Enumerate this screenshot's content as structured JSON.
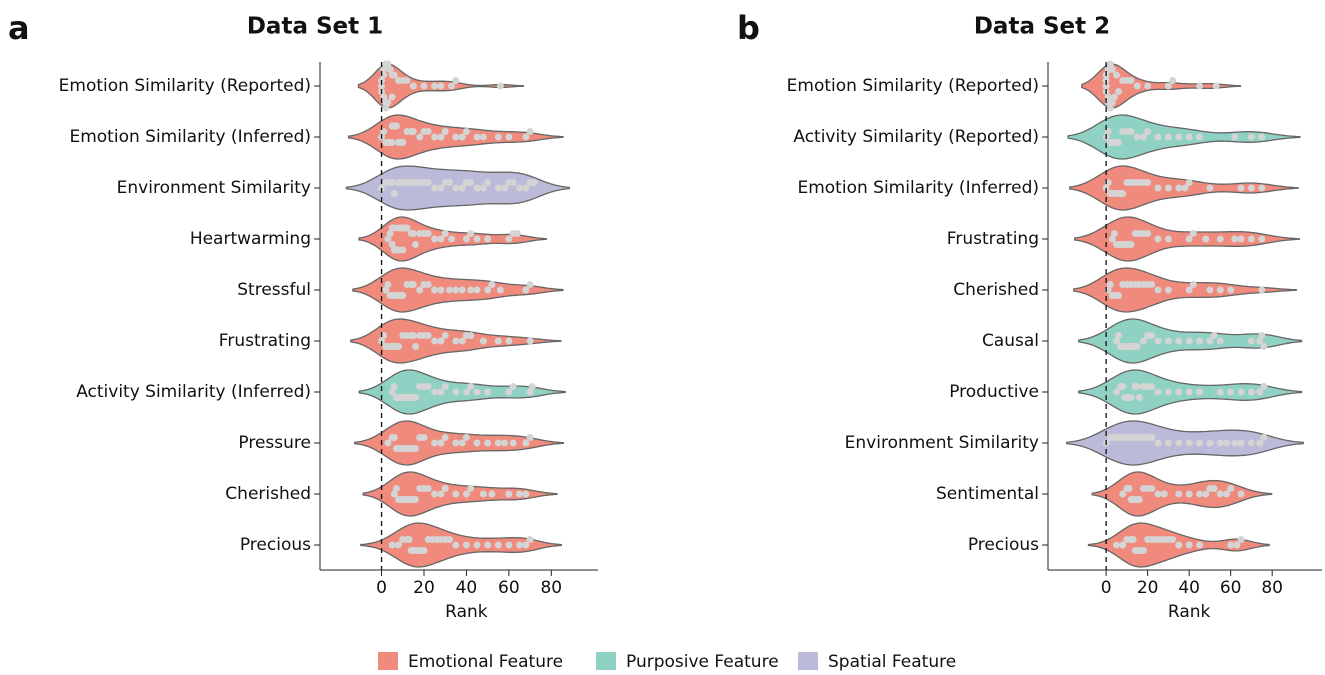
{
  "chart_data": [
    {
      "type": "violin",
      "panel_label": "a",
      "title": "Data Set 1",
      "xlabel": "Rank",
      "categories": [
        "Emotion Similarity (Reported)",
        "Emotion Similarity (Inferred)",
        "Environment Similarity",
        "Heartwarming",
        "Stressful",
        "Frustrating",
        "Activity Similarity (Inferred)",
        "Pressure",
        "Cherished",
        "Precious"
      ],
      "colors": [
        "#ef8a7c",
        "#ef8a7c",
        "#bcbad9",
        "#ef8a7c",
        "#ef8a7c",
        "#ef8a7c",
        "#8fd1c2",
        "#ef8a7c",
        "#ef8a7c",
        "#ef8a7c"
      ],
      "points": [
        [
          0,
          0,
          0,
          1,
          1,
          1,
          2,
          2,
          2,
          3,
          3,
          4,
          5,
          5,
          6,
          8,
          10,
          12,
          15,
          20,
          25,
          28,
          33,
          35,
          56
        ],
        [
          0,
          1,
          2,
          3,
          4,
          5,
          5,
          6,
          7,
          8,
          9,
          10,
          12,
          14,
          15,
          18,
          20,
          22,
          25,
          28,
          30,
          35,
          38,
          40,
          45,
          48,
          55,
          60,
          68,
          70
        ],
        [
          0,
          2,
          4,
          5,
          6,
          8,
          10,
          12,
          14,
          16,
          18,
          20,
          22,
          25,
          28,
          30,
          32,
          35,
          38,
          40,
          42,
          45,
          48,
          50,
          55,
          58,
          60,
          62,
          65,
          68,
          70,
          72
        ],
        [
          3,
          4,
          5,
          5,
          6,
          6,
          7,
          8,
          8,
          9,
          10,
          10,
          11,
          12,
          14,
          15,
          16,
          18,
          20,
          22,
          25,
          28,
          30,
          33,
          40,
          42,
          45,
          50,
          60,
          62,
          64
        ],
        [
          2,
          3,
          4,
          5,
          6,
          7,
          8,
          9,
          10,
          12,
          14,
          15,
          18,
          20,
          22,
          25,
          28,
          32,
          35,
          38,
          42,
          45,
          50,
          52,
          56,
          68,
          70
        ],
        [
          0,
          1,
          2,
          3,
          4,
          5,
          6,
          7,
          8,
          10,
          12,
          14,
          15,
          16,
          18,
          20,
          22,
          25,
          28,
          30,
          35,
          38,
          40,
          42,
          48,
          55,
          60,
          70
        ],
        [
          5,
          6,
          7,
          8,
          9,
          10,
          11,
          12,
          13,
          14,
          15,
          16,
          18,
          20,
          22,
          25,
          28,
          30,
          35,
          40,
          42,
          45,
          50,
          60,
          62,
          70,
          71
        ],
        [
          3,
          5,
          6,
          7,
          8,
          9,
          10,
          11,
          12,
          13,
          14,
          15,
          16,
          18,
          20,
          25,
          28,
          30,
          35,
          38,
          40,
          45,
          50,
          55,
          58,
          62,
          68,
          70
        ],
        [
          6,
          7,
          8,
          9,
          10,
          11,
          12,
          13,
          14,
          15,
          16,
          18,
          20,
          22,
          25,
          28,
          30,
          35,
          40,
          42,
          48,
          52,
          60,
          65,
          68
        ],
        [
          5,
          8,
          10,
          12,
          13,
          14,
          15,
          16,
          17,
          18,
          19,
          20,
          22,
          24,
          26,
          28,
          30,
          32,
          35,
          40,
          45,
          50,
          55,
          60,
          65,
          68,
          70
        ]
      ],
      "xlim": [
        -29,
        102
      ],
      "xticks": [
        0,
        20,
        40,
        60,
        80
      ],
      "reference_line_x": 0
    },
    {
      "type": "violin",
      "panel_label": "b",
      "title": "Data Set 2",
      "xlabel": "Rank",
      "categories": [
        "Emotion Similarity (Reported)",
        "Activity Similarity (Reported)",
        "Emotion Similarity (Inferred)",
        "Frustrating",
        "Cherished",
        "Causal",
        "Productive",
        "Environment Similarity",
        "Sentimental",
        "Precious"
      ],
      "colors": [
        "#ef8a7c",
        "#8fd1c2",
        "#ef8a7c",
        "#ef8a7c",
        "#ef8a7c",
        "#8fd1c2",
        "#8fd1c2",
        "#bcbad9",
        "#ef8a7c",
        "#ef8a7c"
      ],
      "points": [
        [
          0,
          0,
          0,
          0,
          1,
          1,
          1,
          2,
          2,
          3,
          3,
          4,
          5,
          6,
          8,
          10,
          12,
          15,
          20,
          30,
          32,
          45,
          53
        ],
        [
          0,
          1,
          2,
          3,
          4,
          5,
          6,
          8,
          10,
          12,
          15,
          18,
          20,
          25,
          30,
          35,
          40,
          45,
          62,
          70,
          75
        ],
        [
          0,
          1,
          2,
          3,
          4,
          5,
          6,
          7,
          8,
          10,
          12,
          14,
          16,
          18,
          20,
          25,
          30,
          35,
          38,
          40,
          50,
          65,
          70,
          75
        ],
        [
          3,
          4,
          5,
          6,
          7,
          8,
          9,
          10,
          11,
          12,
          14,
          16,
          18,
          20,
          25,
          30,
          40,
          42,
          48,
          55,
          62,
          65,
          70,
          75
        ],
        [
          1,
          2,
          3,
          4,
          5,
          6,
          8,
          10,
          12,
          14,
          16,
          18,
          20,
          22,
          25,
          30,
          40,
          42,
          50,
          55,
          60,
          75
        ],
        [
          5,
          6,
          7,
          8,
          9,
          10,
          11,
          12,
          13,
          14,
          15,
          18,
          20,
          22,
          25,
          30,
          35,
          40,
          45,
          50,
          52,
          55,
          70,
          74,
          75,
          76
        ],
        [
          5,
          7,
          8,
          9,
          10,
          11,
          12,
          14,
          15,
          16,
          18,
          20,
          22,
          25,
          30,
          35,
          40,
          45,
          55,
          60,
          65,
          70,
          74,
          76
        ],
        [
          0,
          2,
          4,
          6,
          8,
          10,
          12,
          14,
          16,
          18,
          20,
          22,
          25,
          30,
          35,
          40,
          45,
          50,
          55,
          58,
          62,
          65,
          70,
          74,
          76
        ],
        [
          8,
          10,
          11,
          12,
          13,
          14,
          15,
          16,
          18,
          20,
          22,
          25,
          28,
          35,
          40,
          45,
          48,
          50,
          52,
          55,
          58,
          60,
          65
        ],
        [
          5,
          8,
          10,
          12,
          13,
          14,
          15,
          16,
          17,
          18,
          20,
          22,
          24,
          26,
          28,
          30,
          32,
          35,
          40,
          45,
          60,
          63,
          65
        ]
      ],
      "xlim": [
        -28,
        104
      ],
      "xticks": [
        0,
        20,
        40,
        60,
        80
      ],
      "reference_line_x": 0
    }
  ],
  "legend": [
    {
      "name": "Emotional Feature",
      "color": "#ef8a7c"
    },
    {
      "name": "Purposive Feature",
      "color": "#8fd1c2"
    },
    {
      "name": "Spatial Feature",
      "color": "#bcbad9"
    }
  ]
}
